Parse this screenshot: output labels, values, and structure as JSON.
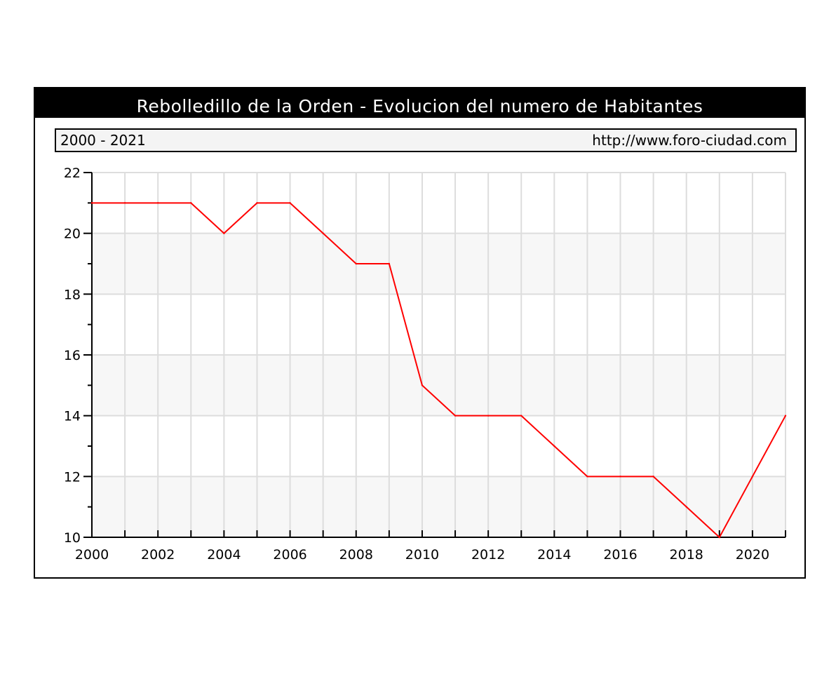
{
  "header": {
    "title": "Rebolledillo de la Orden - Evolucion del numero de Habitantes",
    "range": "2000 - 2021",
    "url": "http://www.foro-ciudad.com"
  },
  "colors": {
    "title_bg": "#000000",
    "line": "#ff0000",
    "grid": "#dddddd",
    "band": "#f7f7f7"
  },
  "chart_data": {
    "type": "line",
    "title": "Rebolledillo de la Orden - Evolucion del numero de Habitantes",
    "xlabel": "",
    "ylabel": "",
    "x": [
      2000,
      2001,
      2002,
      2003,
      2004,
      2005,
      2006,
      2007,
      2008,
      2009,
      2010,
      2011,
      2012,
      2013,
      2014,
      2015,
      2016,
      2017,
      2018,
      2019,
      2020,
      2021
    ],
    "series": [
      {
        "values": [
          21,
          21,
          21,
          21,
          20,
          21,
          21,
          20,
          19,
          19,
          15,
          14,
          14,
          14,
          13,
          12,
          12,
          12,
          11,
          10,
          12,
          14
        ]
      }
    ],
    "xlim": [
      2000,
      2021
    ],
    "ylim": [
      10,
      22
    ],
    "xticks": [
      "2000",
      "2002",
      "2004",
      "2006",
      "2008",
      "2010",
      "2012",
      "2014",
      "2016",
      "2018",
      "2020"
    ],
    "yticks": [
      "10",
      "12",
      "14",
      "16",
      "18",
      "20",
      "22"
    ],
    "grid": true,
    "legend": "none"
  }
}
